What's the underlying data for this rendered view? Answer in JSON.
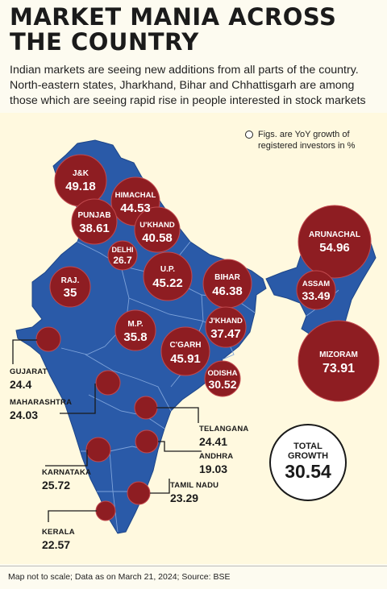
{
  "title_line1": "MARKET MANIA ACROSS",
  "title_line2": "THE COUNTRY",
  "subtitle": "Indian markets are seeing new additions from all parts of the country. North-eastern states, Jharkhand, Bihar and Chhattisgarh are among those which are seeing rapid rise in people interested in stock markets",
  "legend": "Figs. are YoY growth of registered investors in %",
  "colors": {
    "map_fill": "#2a5aa8",
    "bubble": "#8e1d22",
    "background": "#fdfbf0"
  },
  "states_inside": [
    {
      "name": "J&K",
      "value": "49.18"
    },
    {
      "name": "HIMACHAL",
      "value": "44.53"
    },
    {
      "name": "PUNJAB",
      "value": "38.61"
    },
    {
      "name": "U'KHAND",
      "value": "40.58"
    },
    {
      "name": "DELHI",
      "value": "26.7"
    },
    {
      "name": "RAJ.",
      "value": "35"
    },
    {
      "name": "U.P.",
      "value": "45.22"
    },
    {
      "name": "BIHAR",
      "value": "46.38"
    },
    {
      "name": "ARUNACHAL",
      "value": "54.96"
    },
    {
      "name": "ASSAM",
      "value": "33.49"
    },
    {
      "name": "M.P.",
      "value": "35.8"
    },
    {
      "name": "J'KHAND",
      "value": "37.47"
    },
    {
      "name": "C'GARH",
      "value": "45.91"
    },
    {
      "name": "ODISHA",
      "value": "30.52"
    },
    {
      "name": "MIZORAM",
      "value": "73.91"
    }
  ],
  "states_outside": [
    {
      "name": "GUJARAT",
      "value": "24.4"
    },
    {
      "name": "MAHARASHTRA",
      "value": "24.03"
    },
    {
      "name": "TELANGANA",
      "value": "24.41"
    },
    {
      "name": "ANDHRA",
      "value": "19.03"
    },
    {
      "name": "KARNATAKA",
      "value": "25.72"
    },
    {
      "name": "TAMIL NADU",
      "value": "23.29"
    },
    {
      "name": "KERALA",
      "value": "22.57"
    }
  ],
  "total": {
    "label": "TOTAL GROWTH",
    "value": "30.54"
  },
  "footer": "Map not to scale;  Data as on March 21, 2024;  Source: BSE"
}
